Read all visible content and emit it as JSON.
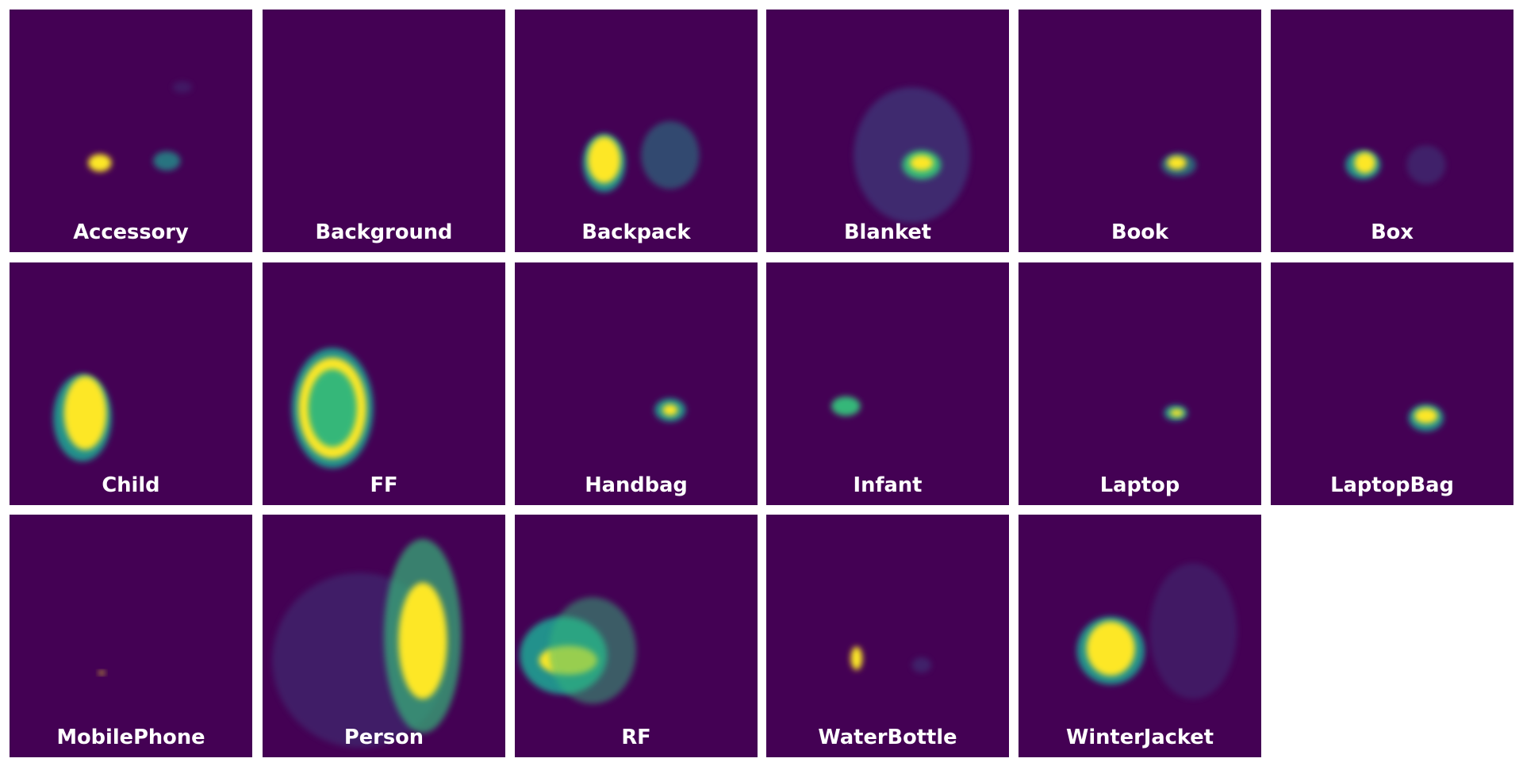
{
  "panels": [
    {
      "label": "Accessory"
    },
    {
      "label": "Background"
    },
    {
      "label": "Backpack"
    },
    {
      "label": "Blanket"
    },
    {
      "label": "Book"
    },
    {
      "label": "Box"
    },
    {
      "label": "Child"
    },
    {
      "label": "FF"
    },
    {
      "label": "Handbag"
    },
    {
      "label": "Infant"
    },
    {
      "label": "Laptop"
    },
    {
      "label": "LaptopBag"
    },
    {
      "label": "MobilePhone"
    },
    {
      "label": "Person"
    },
    {
      "label": "RF"
    },
    {
      "label": "WaterBottle"
    },
    {
      "label": "WinterJacket"
    }
  ]
}
